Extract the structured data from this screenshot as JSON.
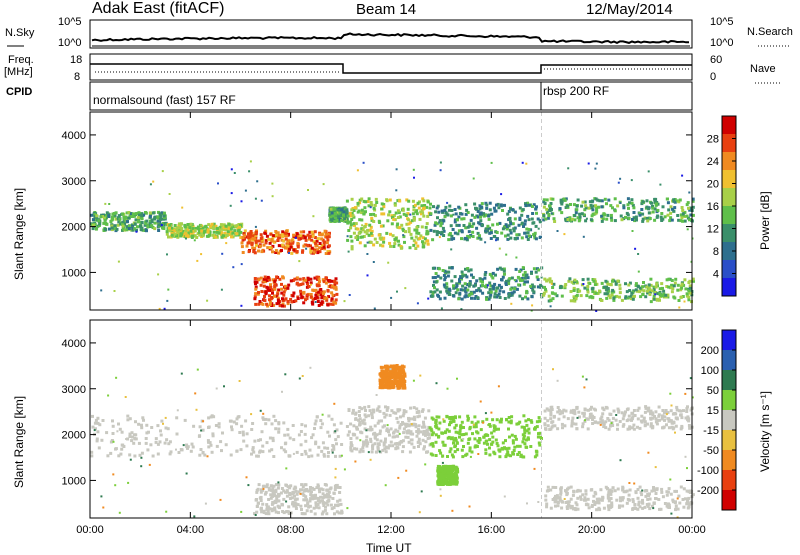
{
  "header": {
    "station": "Adak East (fitACF)",
    "beam": "Beam 14",
    "date": "12/May/2014"
  },
  "summary": {
    "nsky_label": "N.Sky",
    "nsearch_label": "N.Search",
    "freq_label": "Freq.",
    "freq_unit": "[MHz]",
    "nave_label": "Nave",
    "cpid_label": "CPID",
    "noise_ticks": [
      "10^5",
      "10^0"
    ],
    "noise_ticks_right": [
      "10^5",
      "10^0"
    ],
    "freq_ticks": [
      "18",
      "8"
    ],
    "nave_ticks": [
      "60",
      "0"
    ],
    "cpid_segments": [
      {
        "name": "normalsound (fast) 157 RF",
        "start_hour": 0,
        "end_hour": 18
      },
      {
        "name": "rbsp 200 RF",
        "start_hour": 18,
        "end_hour": 24
      }
    ]
  },
  "chart_data": [
    {
      "type": "heatmap",
      "title": "Power",
      "ylabel": "Slant Range [km]",
      "xlabel": "",
      "xlim": [
        0,
        24
      ],
      "ylim": [
        180,
        4500
      ],
      "yticks": [
        1000,
        2000,
        3000,
        4000
      ],
      "colorbar": {
        "label": "Power [dB]",
        "ticks": [
          4,
          8,
          12,
          16,
          20,
          24,
          28
        ],
        "colors": [
          "#1a1ae6",
          "#2a4fc8",
          "#2e6f8e",
          "#3a8f6a",
          "#5fbf4a",
          "#a8d048",
          "#f0c030",
          "#f08a20",
          "#e84010",
          "#d00000"
        ]
      },
      "bands": [
        {
          "t0": 0.0,
          "t1": 3.0,
          "r0": 1900,
          "r1": 2300,
          "level": 12
        },
        {
          "t0": 3.0,
          "t1": 6.0,
          "r0": 1750,
          "r1": 2050,
          "level": 16
        },
        {
          "t0": 6.0,
          "t1": 9.5,
          "r0": 1400,
          "r1": 1900,
          "level": 24
        },
        {
          "t0": 9.5,
          "t1": 10.2,
          "r0": 2100,
          "r1": 2400,
          "level": 12
        },
        {
          "t0": 10.2,
          "t1": 13.5,
          "r0": 1500,
          "r1": 2600,
          "level": 16
        },
        {
          "t0": 13.5,
          "t1": 17.9,
          "r0": 1700,
          "r1": 2500,
          "level": 10
        },
        {
          "t0": 18.0,
          "t1": 24.0,
          "r0": 2100,
          "r1": 2600,
          "level": 12
        },
        {
          "t0": 6.5,
          "t1": 9.8,
          "r0": 250,
          "r1": 900,
          "level": 26
        },
        {
          "t0": 13.5,
          "t1": 18.0,
          "r0": 400,
          "r1": 1100,
          "level": 10
        },
        {
          "t0": 18.0,
          "t1": 24.0,
          "r0": 350,
          "r1": 850,
          "level": 14
        }
      ]
    },
    {
      "type": "heatmap",
      "title": "Velocity",
      "ylabel": "Slant Range [km]",
      "xlabel": "Time UT",
      "xlim": [
        0,
        24
      ],
      "ylim": [
        180,
        4500
      ],
      "yticks": [
        1000,
        2000,
        3000,
        4000
      ],
      "xticks": [
        "00:00",
        "04:00",
        "08:00",
        "12:00",
        "16:00",
        "20:00",
        "00:00"
      ],
      "colorbar": {
        "label": "Velocity [m s⁻¹]",
        "ticks": [
          200,
          100,
          50,
          15,
          -15,
          -50,
          -100,
          -200
        ],
        "colors": [
          "#1a1ae6",
          "#2a60b0",
          "#2e7a50",
          "#7ccf3a",
          "#c8c8c0",
          "#e8c040",
          "#f08a20",
          "#e84010",
          "#d00000"
        ]
      },
      "bands": [
        {
          "t0": 0.0,
          "t1": 10.0,
          "r0": 1500,
          "r1": 2400,
          "level": 0
        },
        {
          "t0": 10.2,
          "t1": 13.5,
          "r0": 1600,
          "r1": 2600,
          "level": 0
        },
        {
          "t0": 11.5,
          "t1": 12.5,
          "r0": 3000,
          "r1": 3500,
          "level": -80
        },
        {
          "t0": 13.5,
          "t1": 18.0,
          "r0": 1500,
          "r1": 2400,
          "level": 30
        },
        {
          "t0": 13.8,
          "t1": 14.6,
          "r0": 900,
          "r1": 1300,
          "level": 30
        },
        {
          "t0": 18.0,
          "t1": 24.0,
          "r0": 2100,
          "r1": 2600,
          "level": 0
        },
        {
          "t0": 6.5,
          "t1": 10.0,
          "r0": 250,
          "r1": 900,
          "level": 0
        },
        {
          "t0": 18.0,
          "t1": 24.0,
          "r0": 350,
          "r1": 850,
          "level": 0
        }
      ]
    }
  ]
}
